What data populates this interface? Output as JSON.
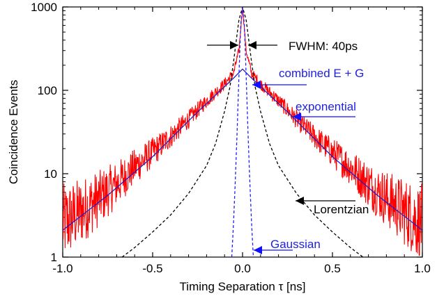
{
  "chart_data": {
    "type": "line",
    "title": "",
    "xlabel": "Timing Separation τ [ns]",
    "ylabel": "Coincidence Events",
    "xlim": [
      -1.0,
      1.0
    ],
    "ylim": [
      1,
      1000
    ],
    "y_scale": "log",
    "x_ticks": [
      {
        "value": -1.0,
        "label": "-1.0"
      },
      {
        "value": -0.5,
        "label": "-0.5"
      },
      {
        "value": 0.0,
        "label": "0.0"
      },
      {
        "value": 0.5,
        "label": "0.5"
      },
      {
        "value": 1.0,
        "label": "1.0"
      }
    ],
    "y_ticks": [
      {
        "value": 1,
        "label": "1"
      },
      {
        "value": 10,
        "label": "10"
      },
      {
        "value": 100,
        "label": "100"
      },
      {
        "value": 1000,
        "label": "1000"
      }
    ],
    "grid": false,
    "legend": "none",
    "series": [
      {
        "kind": "measured-data",
        "color": "#ff0000",
        "x": [
          -1.0,
          -0.9,
          -0.8,
          -0.7,
          -0.6,
          -0.5,
          -0.4,
          -0.3,
          -0.2,
          -0.1,
          -0.05,
          -0.02,
          0.0,
          0.02,
          0.05,
          0.1,
          0.2,
          0.3,
          0.4,
          0.5,
          0.6,
          0.7,
          0.8,
          0.9,
          1.0
        ],
        "y": [
          2.5,
          3.5,
          5,
          7.5,
          12,
          18,
          28,
          45,
          75,
          120,
          160,
          300,
          1000,
          300,
          160,
          120,
          75,
          45,
          28,
          18,
          12,
          7.5,
          5,
          3.5,
          2.5
        ]
      },
      {
        "kind": "exponential-fit",
        "style": "solid",
        "color": "#2020c0",
        "x": [
          -1.0,
          -0.75,
          -0.5,
          -0.25,
          -0.05,
          0.0,
          0.05,
          0.25,
          0.5,
          0.75,
          1.0
        ],
        "y": [
          2.1,
          5.5,
          16,
          55,
          140,
          180,
          140,
          55,
          16,
          5.5,
          2.1
        ]
      },
      {
        "kind": "lorentzian-fit",
        "style": "dashed",
        "color": "#000000",
        "x": [
          -0.67,
          -0.6,
          -0.5,
          -0.4,
          -0.3,
          -0.2,
          -0.15,
          -0.1,
          -0.07,
          -0.05,
          -0.03,
          -0.02,
          0.0,
          0.02,
          0.03,
          0.05,
          0.07,
          0.1,
          0.15,
          0.2,
          0.3,
          0.4,
          0.5,
          0.6,
          0.67
        ],
        "y": [
          1.0,
          1.3,
          2.0,
          3.2,
          5.8,
          12.5,
          23,
          56,
          110,
          220,
          480,
          700,
          1000,
          700,
          480,
          220,
          110,
          56,
          23,
          12.5,
          5.8,
          3.2,
          2.0,
          1.3,
          1.0
        ]
      },
      {
        "kind": "gaussian-fit",
        "style": "dashed",
        "color": "#2020ff",
        "x": [
          -0.06,
          -0.05,
          -0.04,
          -0.03,
          -0.02,
          -0.01,
          0.0,
          0.01,
          0.02,
          0.03,
          0.04,
          0.05,
          0.06
        ],
        "y": [
          1.0,
          2.6,
          8.5,
          33,
          150,
          620,
          1000,
          620,
          150,
          33,
          8.5,
          2.6,
          1.0
        ]
      }
    ],
    "annotations": [
      {
        "text": "FWHM: 40ps",
        "color": "#000000",
        "x": 0.28,
        "y": 650
      },
      {
        "text": "combined E + G",
        "color": "#2020e0",
        "x": 0.2,
        "y": 255
      },
      {
        "text": "exponential",
        "color": "#2020e0",
        "x": 0.4,
        "y": 96
      },
      {
        "text": "Lorentzian",
        "color": "#000000",
        "x": 0.4,
        "y": 3.4
      },
      {
        "text": "Gaussian",
        "color": "#2020e0",
        "x": 0.1,
        "y": 1.35
      }
    ]
  }
}
